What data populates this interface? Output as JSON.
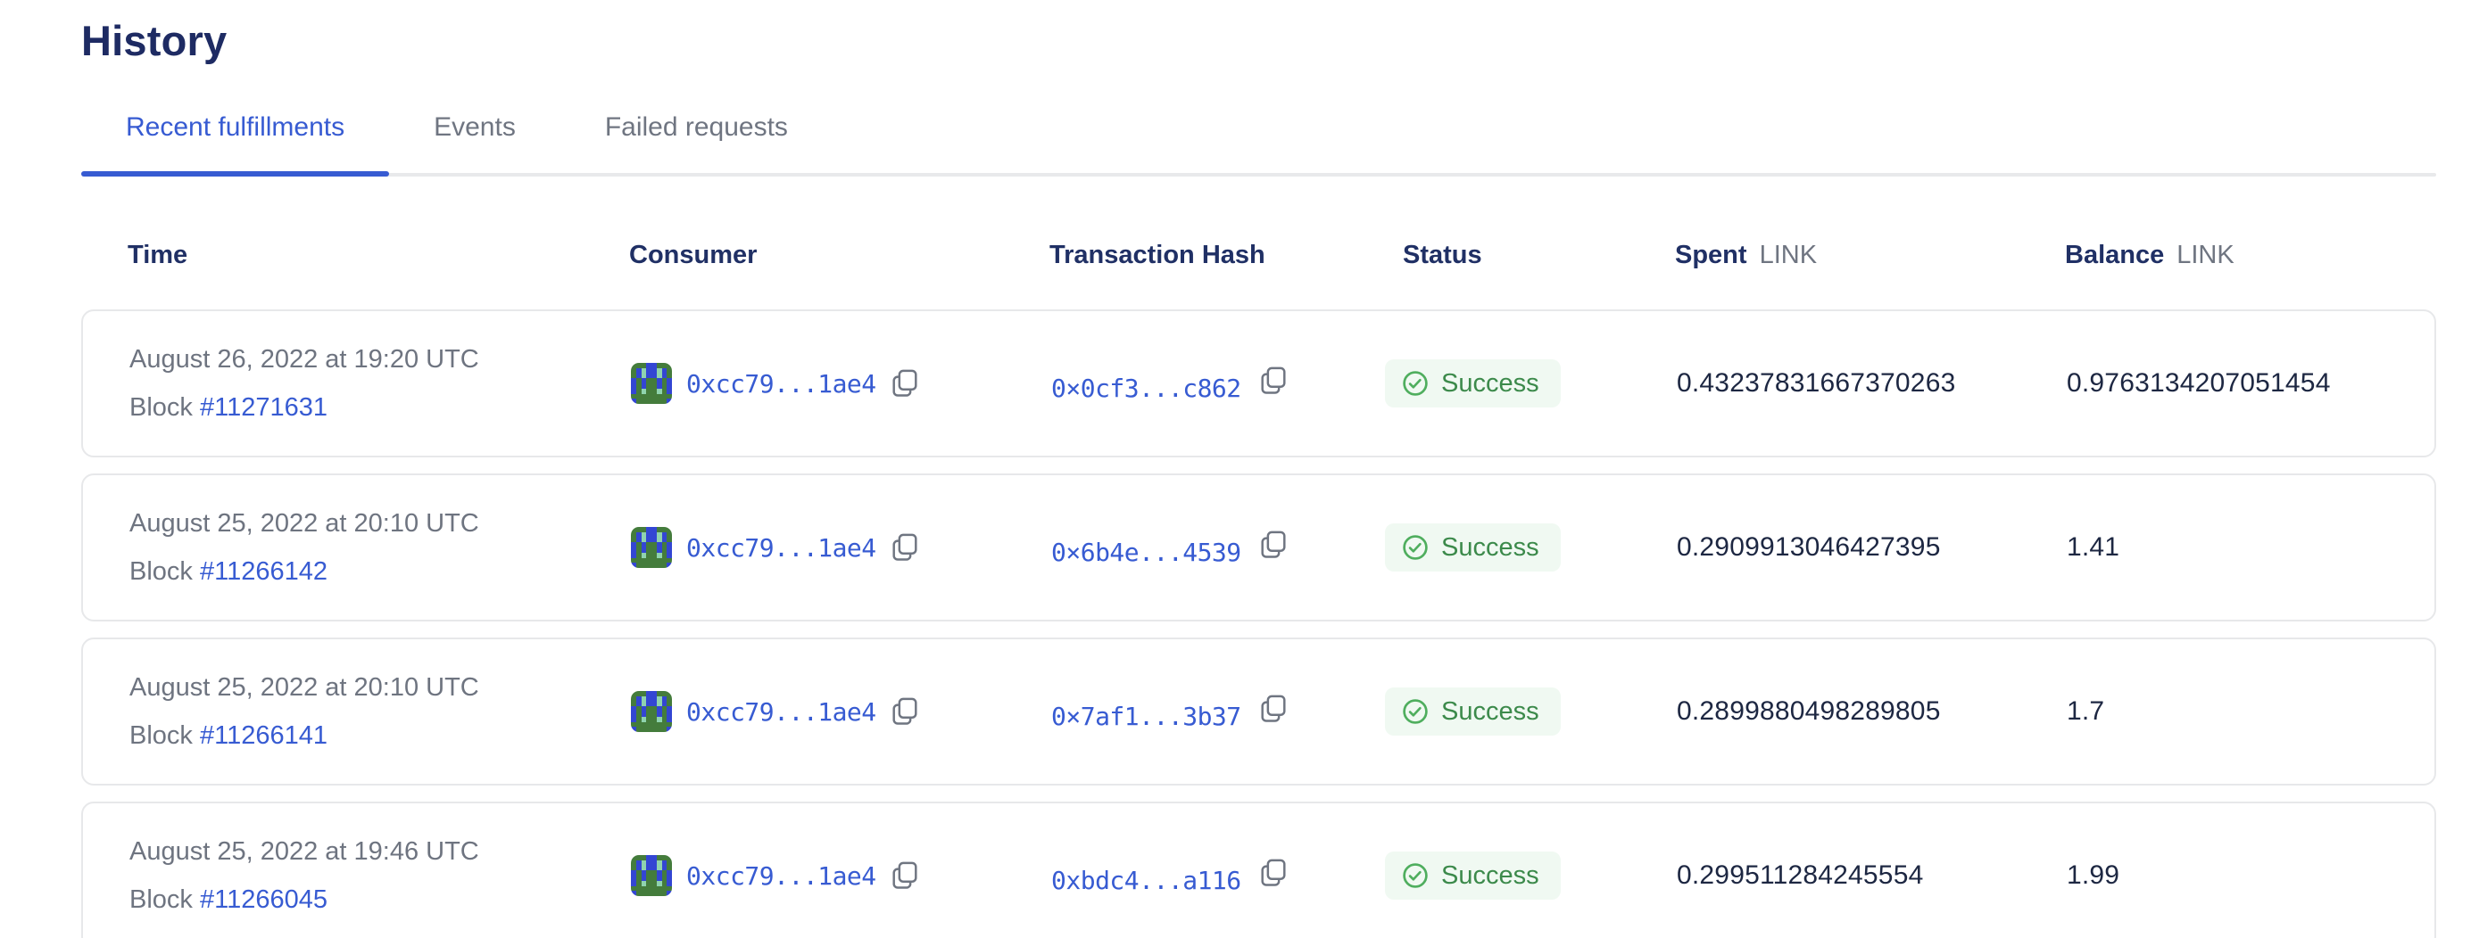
{
  "page": {
    "title": "History"
  },
  "tabs": [
    {
      "label": "Recent fulfillments",
      "active": true
    },
    {
      "label": "Events",
      "active": false
    },
    {
      "label": "Failed requests",
      "active": false
    }
  ],
  "table": {
    "headers": {
      "time": "Time",
      "consumer": "Consumer",
      "tx": "Transaction Hash",
      "status": "Status",
      "spent": "Spent",
      "balance": "Balance",
      "unit": "LINK"
    },
    "labels": {
      "block": "Block"
    },
    "rows": [
      {
        "date": "August 26, 2022 at 19:20 UTC",
        "block": "#11271631",
        "consumer": "0xcc79...1ae4",
        "tx": "0×0cf3...c862",
        "status": "Success",
        "spent": "0.43237831667370263",
        "balance": "0.9763134207051454"
      },
      {
        "date": "August 25, 2022 at 20:10 UTC",
        "block": "#11266142",
        "consumer": "0xcc79...1ae4",
        "tx": "0×6b4e...4539",
        "status": "Success",
        "spent": "0.2909913046427395",
        "balance": "1.41"
      },
      {
        "date": "August 25, 2022 at 20:10 UTC",
        "block": "#11266141",
        "consumer": "0xcc79...1ae4",
        "tx": "0×7af1...3b37",
        "status": "Success",
        "spent": "0.2899880498289805",
        "balance": "1.7"
      },
      {
        "date": "August 25, 2022 at 19:46 UTC",
        "block": "#11266045",
        "consumer": "0xcc79...1ae4",
        "tx": "0xbdc4...a116",
        "status": "Success",
        "spent": "0.299511284245554",
        "balance": "1.99"
      }
    ]
  },
  "icons": {
    "copy-icon": "two overlapping rounded squares (duplicate)",
    "check-circle-icon": "checkmark inside circle outline",
    "consumer-identicon": "8x8 pixel blockie avatar"
  },
  "identicon": {
    "palette": {
      "G": "#447C3C",
      "B": "#3346D3",
      "T": "#8FD3AE"
    },
    "grid": [
      "GGGBBGGG",
      "GBTBBTBG",
      "GBTBBTBG",
      "BGBGGBGB",
      "BGBGGBGB",
      "BGTGGTGB",
      "GGGGGGGG",
      "BGGGGGGB"
    ]
  },
  "colors": {
    "accent_blue": "#375BD2",
    "heading_navy": "#1E2B63",
    "header_navy": "#203065",
    "text_secondary": "#6E7480",
    "value_text": "#1D2742",
    "success_text": "#3C8A4B",
    "success_icon": "#4FAE5E",
    "success_bg": "#F0F9F2",
    "card_border": "#E7E8EA",
    "tab_track": "#E8E9EB"
  }
}
